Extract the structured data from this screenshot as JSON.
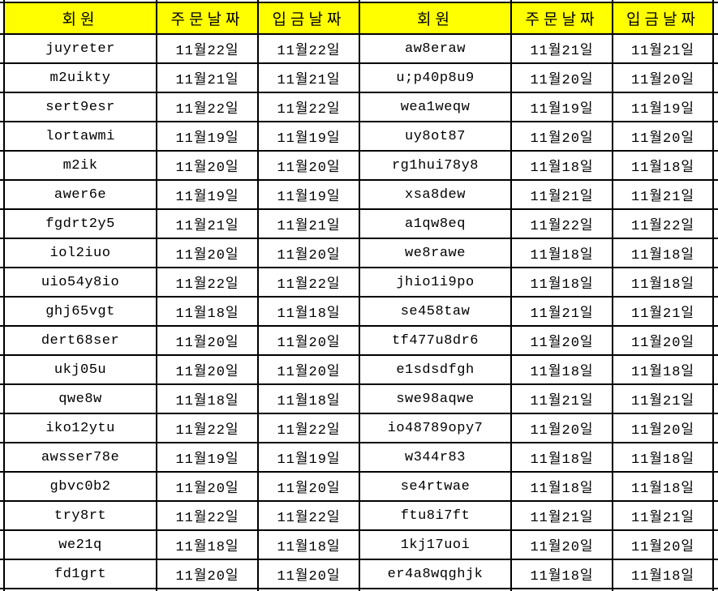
{
  "columns": [
    "회원",
    "주문날짜",
    "입금날짜",
    "회원",
    "주문날짜",
    "입금날짜"
  ],
  "rows": [
    [
      "juyreter",
      "11월22일",
      "11월22일",
      "aw8eraw",
      "11월21일",
      "11월21일"
    ],
    [
      "m2uikty",
      "11월21일",
      "11월21일",
      "u;p40p8u9",
      "11월20일",
      "11월20일"
    ],
    [
      "sert9esr",
      "11월22일",
      "11월22일",
      "wea1weqw",
      "11월19일",
      "11월19일"
    ],
    [
      "lortawmi",
      "11월19일",
      "11월19일",
      "uy8ot87",
      "11월20일",
      "11월20일"
    ],
    [
      "m2ik",
      "11월20일",
      "11월20일",
      "rg1hui78y8",
      "11월18일",
      "11월18일"
    ],
    [
      "awer6e",
      "11월19일",
      "11월19일",
      "xsa8dew",
      "11월21일",
      "11월21일"
    ],
    [
      "fgdrt2y5",
      "11월21일",
      "11월21일",
      "a1qw8eq",
      "11월22일",
      "11월22일"
    ],
    [
      "iol2iuo",
      "11월20일",
      "11월20일",
      "we8rawe",
      "11월18일",
      "11월18일"
    ],
    [
      "uio54y8io",
      "11월22일",
      "11월22일",
      "jhio1i9po",
      "11월18일",
      "11월18일"
    ],
    [
      "ghj65vgt",
      "11월18일",
      "11월18일",
      "se458taw",
      "11월21일",
      "11월21일"
    ],
    [
      "dert68ser",
      "11월20일",
      "11월20일",
      "tf477u8dr6",
      "11월20일",
      "11월20일"
    ],
    [
      "ukj05u",
      "11월20일",
      "11월20일",
      "e1sdsdfgh",
      "11월18일",
      "11월18일"
    ],
    [
      "qwe8w",
      "11월18일",
      "11월18일",
      "swe98aqwe",
      "11월21일",
      "11월21일"
    ],
    [
      "iko12ytu",
      "11월22일",
      "11월22일",
      "io48789opy7",
      "11월20일",
      "11월20일"
    ],
    [
      "awsser78e",
      "11월19일",
      "11월19일",
      "w344r83",
      "11월18일",
      "11월18일"
    ],
    [
      "gbvc0b2",
      "11월20일",
      "11월20일",
      "se4rtwae",
      "11월18일",
      "11월18일"
    ],
    [
      "try8rt",
      "11월22일",
      "11월22일",
      "ftu8i7ft",
      "11월21일",
      "11월21일"
    ],
    [
      "we21q",
      "11월18일",
      "11월18일",
      "1kj17uoi",
      "11월20일",
      "11월20일"
    ],
    [
      "fd1grt",
      "11월20일",
      "11월20일",
      "er4a8wqghjk",
      "11월18일",
      "11월18일"
    ]
  ],
  "colors": {
    "header_bg": "#FFFF00",
    "grid_border": "#000000",
    "cell_bg": "#FFFFFF",
    "text": "#000000"
  }
}
